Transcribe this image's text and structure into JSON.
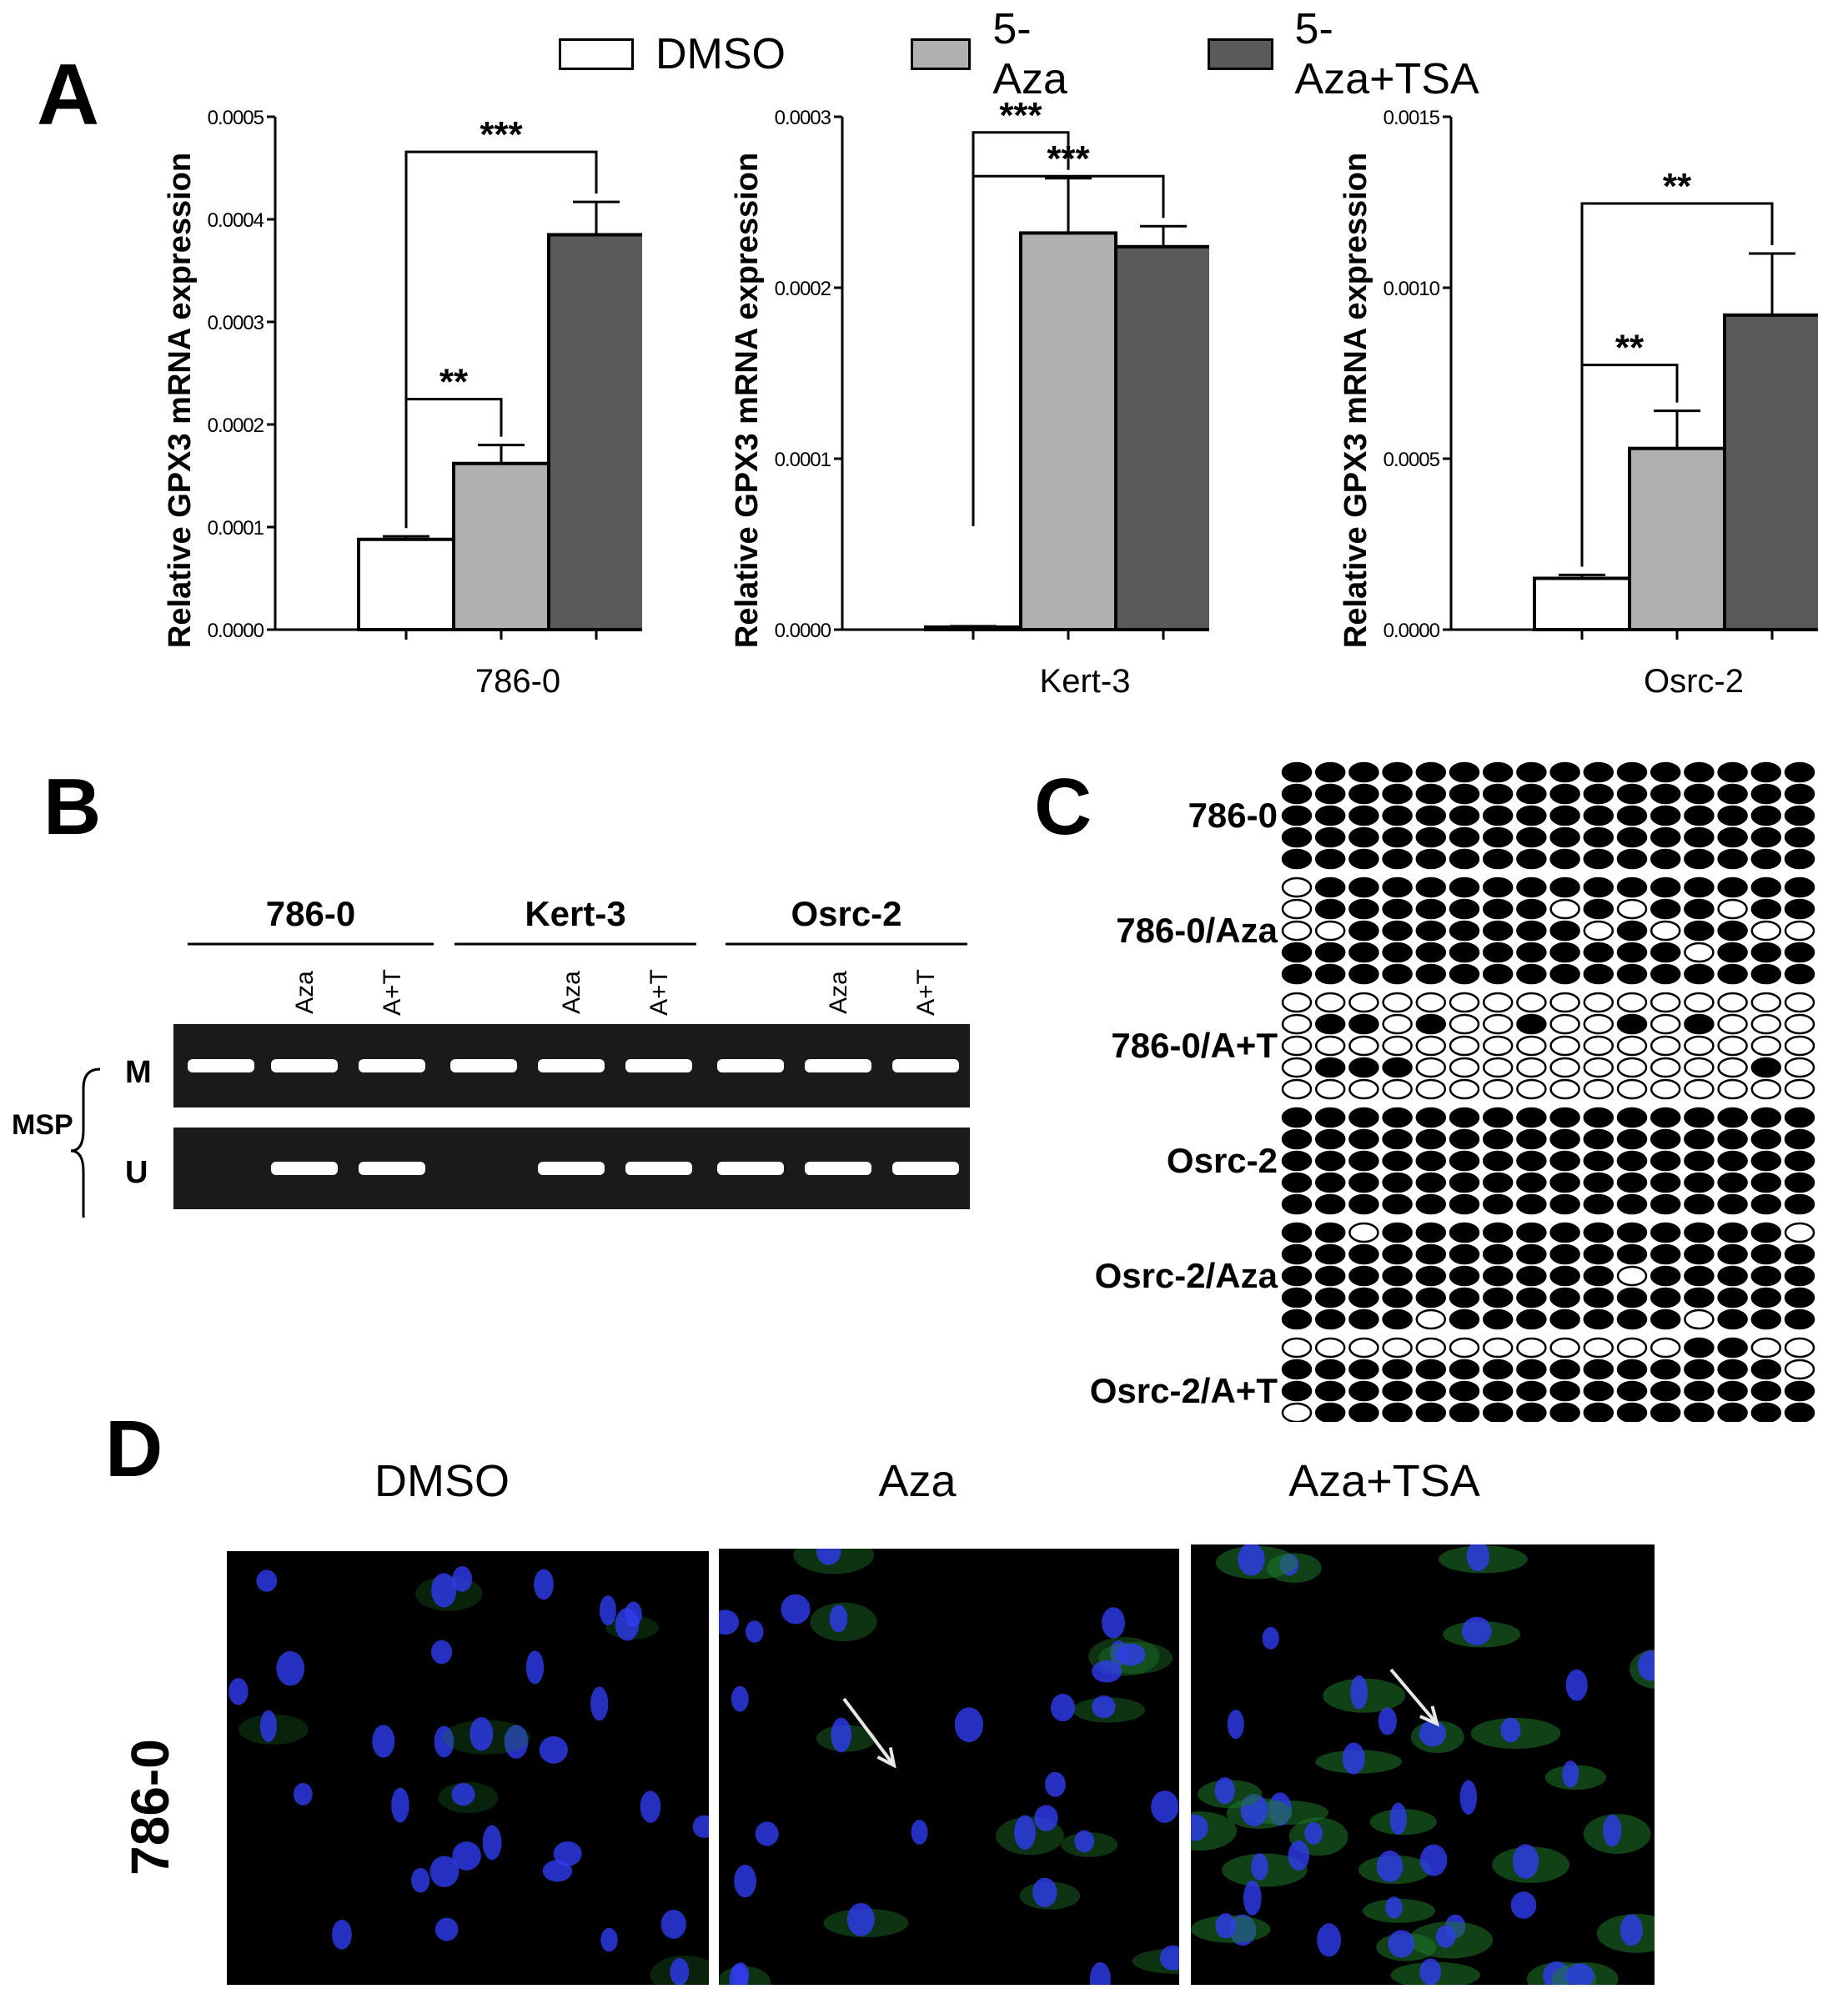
{
  "panels": {
    "a": "A",
    "b": "B",
    "c": "C",
    "d": "D"
  },
  "legend": [
    {
      "label": "DMSO",
      "color": "#ffffff"
    },
    {
      "label": "5-Aza",
      "color": "#b0b0b0"
    },
    {
      "label": "5-Aza+TSA",
      "color": "#5a5a5a"
    }
  ],
  "chart_data": [
    {
      "type": "bar",
      "xlabel": "786-0",
      "ylabel": "Relative GPX3 mRNA expression",
      "ylim": [
        0,
        0.0005
      ],
      "yticks": [
        "0.0000",
        "0.0001",
        "0.0002",
        "0.0003",
        "0.0004",
        "0.0005"
      ],
      "categories": [
        "DMSO",
        "5-Aza",
        "5-Aza+TSA"
      ],
      "values": [
        8.8e-05,
        0.000162,
        0.000385
      ],
      "errors": [
        3e-06,
        1.8e-05,
        3.2e-05
      ],
      "significance": [
        {
          "from": 0,
          "to": 1,
          "label": "**"
        },
        {
          "from": 0,
          "to": 2,
          "label": "***"
        }
      ]
    },
    {
      "type": "bar",
      "xlabel": "Kert-3",
      "ylabel": "Relative GPX3 mRNA expression",
      "ylim": [
        0,
        0.0003
      ],
      "yticks": [
        "0.0000",
        "0.0001",
        "0.0002",
        "0.0003"
      ],
      "categories": [
        "DMSO",
        "5-Aza",
        "5-Aza+TSA"
      ],
      "values": [
        1.5e-06,
        0.000232,
        0.000224
      ],
      "errors": [
        5e-07,
        3.2e-05,
        1.2e-05
      ],
      "significance": [
        {
          "from": 0,
          "to": 1,
          "label": "***"
        },
        {
          "from": 0,
          "to": 2,
          "label": "***"
        }
      ]
    },
    {
      "type": "bar",
      "xlabel": "Osrc-2",
      "ylabel": "Relative GPX3 mRNA expression",
      "ylim": [
        0,
        0.0015
      ],
      "yticks": [
        "0.0000",
        "0.0005",
        "0.0010",
        "0.0015"
      ],
      "categories": [
        "DMSO",
        "5-Aza",
        "5-Aza+TSA"
      ],
      "values": [
        0.00015,
        0.00053,
        0.00092
      ],
      "errors": [
        1e-05,
        0.00011,
        0.00018
      ],
      "significance": [
        {
          "from": 0,
          "to": 1,
          "label": "**"
        },
        {
          "from": 0,
          "to": 2,
          "label": "**"
        }
      ]
    }
  ],
  "gel": {
    "groups": [
      "786-0",
      "Kert-3",
      "Osrc-2"
    ],
    "lane_labels": [
      "",
      "Aza",
      "A+T",
      "",
      "Aza",
      "A+T",
      "",
      "Aza",
      "A+T"
    ],
    "side_label": "MSP",
    "row_labels": [
      "M",
      "U"
    ],
    "m_band": [
      1,
      1,
      1,
      1,
      1,
      1,
      1,
      1,
      1
    ],
    "u_band": [
      0,
      1,
      1,
      0,
      1,
      1,
      1,
      1,
      1
    ]
  },
  "bisulfite": {
    "rows": [
      {
        "label": "786-0",
        "pattern": [
          "1111111111111111",
          "1111111111111111",
          "1111111111111111",
          "1111111111111111",
          "1111111111111111"
        ]
      },
      {
        "label": "786-0/Aza",
        "pattern": [
          "0111111111111111",
          "0111111101011011",
          "0011111110101100",
          "1111111111110111",
          "1111111111111111"
        ]
      },
      {
        "label": "786-0/A+T",
        "pattern": [
          "0000000000000000",
          "0110100100101000",
          "0000000000000000",
          "0111000000000010",
          "0000000000000000"
        ]
      },
      {
        "label": "Osrc-2",
        "pattern": [
          "1111111111111111",
          "1111111111111111",
          "1111111111111111",
          "1111111111111111",
          "1111111111111111"
        ]
      },
      {
        "label": "Osrc-2/Aza",
        "pattern": [
          "1101111111111110",
          "1111111111111111",
          "1111111111011111",
          "1111111111111111",
          "1111011111110111"
        ]
      },
      {
        "label": "Osrc-2/A+T",
        "pattern": [
          "0000000000001100",
          "1111111111111110",
          "1111111111111111",
          "0111111111111111",
          "1111011111111111"
        ]
      }
    ]
  },
  "microscopy": {
    "conditions": [
      "DMSO",
      "Aza",
      "Aza+TSA"
    ],
    "row_label": "786-0"
  }
}
